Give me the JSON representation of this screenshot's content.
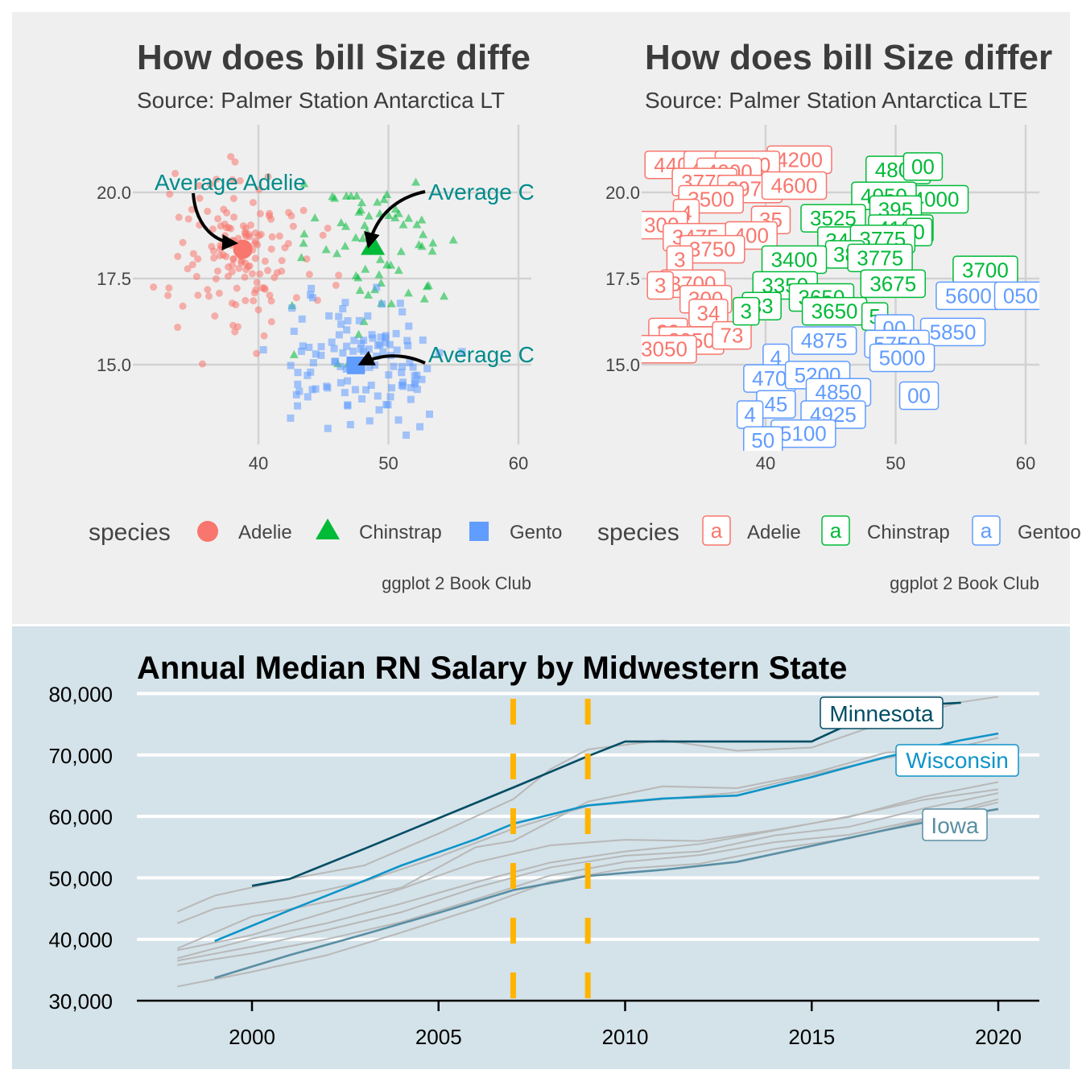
{
  "colors": {
    "panel_bg": "#efefef",
    "bottom_bg": "#d4e2e9",
    "adelie": "#f8766d",
    "chinstrap": "#00ba38",
    "gentoo": "#619cff",
    "annot": "#008b8b",
    "grid": "#d2d2d2",
    "minnesota": "#014d64",
    "wisconsin": "#0f94c8",
    "iowa": "#5a8ea3",
    "other": "#b8b8b8",
    "recession": "#ffb400"
  },
  "chart_data": [
    {
      "type": "scatter",
      "title": "How does bill Size diffe",
      "subtitle": "Source: Palmer Station Antarctica LT",
      "caption": "ggplot 2 Book Club",
      "xlabel": "",
      "ylabel": "",
      "xlim": [
        30.5,
        61
      ],
      "ylim": [
        12.8,
        21.6
      ],
      "x_ticks": [
        40,
        50,
        60
      ],
      "y_ticks": [
        "15.0",
        "17.5",
        "20.0"
      ],
      "y_tick_values": [
        15.0,
        17.5,
        20.0
      ],
      "legend_title": "species",
      "legend": [
        "Adelie",
        "Chinstrap",
        "Gento"
      ],
      "averages": [
        {
          "species": "Adelie",
          "x": 38.8,
          "y": 18.35
        },
        {
          "species": "Chinstrap",
          "x": 48.8,
          "y": 18.42
        },
        {
          "species": "Gentoo",
          "x": 47.5,
          "y": 14.98
        }
      ],
      "annotations": [
        "Average Adelie",
        "Average C",
        "Average C"
      ]
    },
    {
      "type": "scatter",
      "title": "How does bill Size differ",
      "subtitle": "Source: Palmer Station Antarctica LTE",
      "caption": "ggplot 2 Book Club",
      "xlabel": "",
      "ylabel": "",
      "xlim": [
        30.5,
        61
      ],
      "ylim": [
        12.8,
        21.6
      ],
      "x_ticks": [
        40,
        50,
        60
      ],
      "y_ticks": [
        "15.0",
        "17.5",
        "20.0"
      ],
      "y_tick_values": [
        15.0,
        17.5,
        20.0
      ],
      "legend_title": "species",
      "legend_key": "a",
      "legend": [
        "Adelie",
        "Chinstrap",
        "Gentoo"
      ],
      "labels": [
        {
          "s": "a",
          "t": "4200",
          "x": 42.6,
          "y": 20.95
        },
        {
          "s": "a",
          "t": "4400",
          "x": 33.2,
          "y": 20.8
        },
        {
          "s": "a",
          "t": "4100",
          "x": 36.2,
          "y": 20.8
        },
        {
          "s": "a",
          "t": "4400",
          "x": 38.6,
          "y": 20.8
        },
        {
          "s": "a",
          "t": "4000",
          "x": 37.2,
          "y": 20.6
        },
        {
          "s": "a",
          "t": "3775",
          "x": 35.3,
          "y": 20.3
        },
        {
          "s": "a",
          "t": "3975",
          "x": 38.8,
          "y": 20.1
        },
        {
          "s": "a",
          "t": "4600",
          "x": 42.2,
          "y": 20.2
        },
        {
          "s": "a",
          "t": "3500",
          "x": 35.8,
          "y": 19.8
        },
        {
          "s": "a",
          "t": "4",
          "x": 33.9,
          "y": 19.4
        },
        {
          "s": "a",
          "t": "35",
          "x": 40.4,
          "y": 19.2
        },
        {
          "s": "a",
          "t": "300",
          "x": 32.0,
          "y": 19.05
        },
        {
          "s": "a",
          "t": "3475",
          "x": 34.6,
          "y": 18.7
        },
        {
          "s": "a",
          "t": "400",
          "x": 38.9,
          "y": 18.75
        },
        {
          "s": "a",
          "t": "3750",
          "x": 35.9,
          "y": 18.35
        },
        {
          "s": "a",
          "t": "3",
          "x": 33.4,
          "y": 18.05
        },
        {
          "s": "a",
          "t": "3700",
          "x": 34.4,
          "y": 17.35
        },
        {
          "s": "a",
          "t": "3",
          "x": 31.9,
          "y": 17.3
        },
        {
          "s": "a",
          "t": "300",
          "x": 35.4,
          "y": 16.9
        },
        {
          "s": "a",
          "t": "34",
          "x": 35.6,
          "y": 16.5
        },
        {
          "s": "a",
          "t": "29",
          "x": 32.5,
          "y": 15.95
        },
        {
          "s": "a",
          "t": "3050",
          "x": 34.3,
          "y": 15.7
        },
        {
          "s": "a",
          "t": "73",
          "x": 37.4,
          "y": 15.85
        },
        {
          "s": "a",
          "t": "3050",
          "x": 32.2,
          "y": 15.45
        },
        {
          "s": "c",
          "t": "4800",
          "x": 50.2,
          "y": 20.65
        },
        {
          "s": "c",
          "t": "00",
          "x": 52.1,
          "y": 20.75
        },
        {
          "s": "c",
          "t": "4000",
          "x": 53.1,
          "y": 19.8
        },
        {
          "s": "c",
          "t": "4050",
          "x": 49.1,
          "y": 19.9
        },
        {
          "s": "c",
          "t": "395",
          "x": 50.0,
          "y": 19.5
        },
        {
          "s": "c",
          "t": "3525",
          "x": 45.2,
          "y": 19.25
        },
        {
          "s": "c",
          "t": "4100",
          "x": 50.4,
          "y": 18.95
        },
        {
          "s": "c",
          "t": "0",
          "x": 51.8,
          "y": 18.85
        },
        {
          "s": "c",
          "t": "34",
          "x": 45.5,
          "y": 18.6
        },
        {
          "s": "c",
          "t": "3775",
          "x": 49.0,
          "y": 18.65
        },
        {
          "s": "c",
          "t": "38",
          "x": 46.1,
          "y": 18.2
        },
        {
          "s": "c",
          "t": "3400",
          "x": 42.2,
          "y": 18.05
        },
        {
          "s": "c",
          "t": "3775",
          "x": 48.8,
          "y": 18.1
        },
        {
          "s": "c",
          "t": "3700",
          "x": 56.9,
          "y": 17.75
        },
        {
          "s": "c",
          "t": "3350",
          "x": 41.5,
          "y": 17.3
        },
        {
          "s": "c",
          "t": "3675",
          "x": 49.8,
          "y": 17.35
        },
        {
          "s": "c",
          "t": "3650",
          "x": 44.3,
          "y": 16.95
        },
        {
          "s": "c",
          "t": "33",
          "x": 39.7,
          "y": 16.7
        },
        {
          "s": "c",
          "t": "3",
          "x": 38.5,
          "y": 16.55
        },
        {
          "s": "c",
          "t": "3650",
          "x": 45.3,
          "y": 16.55
        },
        {
          "s": "c",
          "t": "5",
          "x": 48.4,
          "y": 16.4
        },
        {
          "s": "g",
          "t": "5600",
          "x": 55.6,
          "y": 17.0
        },
        {
          "s": "g",
          "t": "050",
          "x": 59.6,
          "y": 17.0
        },
        {
          "s": "g",
          "t": "5850",
          "x": 54.4,
          "y": 15.95
        },
        {
          "s": "g",
          "t": "00",
          "x": 49.9,
          "y": 16.05
        },
        {
          "s": "g",
          "t": "4875",
          "x": 44.5,
          "y": 15.7
        },
        {
          "s": "g",
          "t": "5750",
          "x": 50.1,
          "y": 15.6
        },
        {
          "s": "g",
          "t": "5000",
          "x": 50.5,
          "y": 15.2
        },
        {
          "s": "g",
          "t": "4",
          "x": 40.8,
          "y": 15.2
        },
        {
          "s": "g",
          "t": "470",
          "x": 40.3,
          "y": 14.6
        },
        {
          "s": "g",
          "t": "5200",
          "x": 44.0,
          "y": 14.7
        },
        {
          "s": "g",
          "t": "4850",
          "x": 45.6,
          "y": 14.2
        },
        {
          "s": "g",
          "t": "00",
          "x": 51.8,
          "y": 14.1
        },
        {
          "s": "g",
          "t": "45",
          "x": 40.8,
          "y": 13.85
        },
        {
          "s": "g",
          "t": "4925",
          "x": 45.2,
          "y": 13.55
        },
        {
          "s": "g",
          "t": "4",
          "x": 38.8,
          "y": 13.55
        },
        {
          "s": "g",
          "t": "5100",
          "x": 42.9,
          "y": 13.0
        },
        {
          "s": "g",
          "t": "50",
          "x": 39.8,
          "y": 12.8
        }
      ]
    },
    {
      "type": "line",
      "title": "Annual Median RN Salary by Midwestern State",
      "xlim": [
        1997,
        2021.1
      ],
      "ylim": [
        30000,
        80000
      ],
      "x_ticks": [
        2000,
        2005,
        2010,
        2015,
        2020
      ],
      "y_ticks": [
        "30,000",
        "40,000",
        "50,000",
        "60,000",
        "70,000",
        "80,000"
      ],
      "y_tick_values": [
        30000,
        40000,
        50000,
        60000,
        70000,
        80000
      ],
      "recession_years": [
        2007,
        2009
      ],
      "highlight_labels": [
        "Minnesota",
        "Wisconsin",
        "Iowa"
      ],
      "series": [
        {
          "name": "Minnesota",
          "highlight": "minnesota",
          "x": [
            2000,
            2001,
            2003,
            2005,
            2007,
            2009,
            2010,
            2011,
            2012,
            2013,
            2014,
            2015,
            2016,
            2017,
            2018,
            2019
          ],
          "values": [
            48700,
            49800,
            54700,
            59700,
            64700,
            69800,
            72200,
            72200,
            72200,
            72200,
            72200,
            72200,
            75000,
            77300,
            78200,
            78500
          ]
        },
        {
          "name": "Wisconsin",
          "highlight": "wisconsin",
          "x": [
            1999,
            2001,
            2003,
            2004,
            2006,
            2007,
            2009,
            2011,
            2013,
            2015,
            2017,
            2019,
            2020
          ],
          "values": [
            39700,
            44700,
            49500,
            52000,
            56300,
            58800,
            61800,
            62900,
            63400,
            66400,
            69700,
            72400,
            73500
          ]
        },
        {
          "name": "Iowa",
          "highlight": "iowa",
          "x": [
            1999,
            2001,
            2003,
            2005,
            2007,
            2009,
            2011,
            2013,
            2015,
            2017,
            2019,
            2020
          ],
          "values": [
            33700,
            37400,
            40800,
            44300,
            48000,
            50300,
            51300,
            52600,
            55200,
            57800,
            60200,
            61200
          ]
        },
        {
          "name": "other-1",
          "x": [
            1998,
            1999,
            2001,
            2003,
            2005,
            2007,
            2008,
            2009,
            2011,
            2013,
            2015,
            2017,
            2019,
            2020
          ],
          "values": [
            44500,
            47100,
            49800,
            52000,
            57200,
            62800,
            67700,
            70900,
            72400,
            70700,
            71200,
            75400,
            78600,
            79500
          ]
        },
        {
          "name": "other-2",
          "x": [
            1998,
            1999,
            2001,
            2003,
            2005,
            2007,
            2009,
            2011,
            2013,
            2015,
            2017,
            2019,
            2020
          ],
          "values": [
            42600,
            45000,
            46700,
            49400,
            53400,
            58000,
            61700,
            62800,
            63900,
            66800,
            69500,
            71400,
            72800
          ]
        },
        {
          "name": "other-3",
          "x": [
            1998,
            2000,
            2002,
            2004,
            2006,
            2007,
            2009,
            2011,
            2013,
            2015,
            2017,
            2019,
            2020
          ],
          "values": [
            38500,
            43700,
            46100,
            48400,
            55000,
            56000,
            62400,
            64900,
            64600,
            67000,
            70400,
            71000,
            71500
          ]
        },
        {
          "name": "other-4",
          "x": [
            1998,
            2000,
            2002,
            2004,
            2006,
            2008,
            2010,
            2012,
            2014,
            2016,
            2018,
            2020
          ],
          "values": [
            38200,
            40700,
            44400,
            48200,
            52500,
            55300,
            56200,
            56000,
            57800,
            59900,
            63200,
            65600
          ]
        },
        {
          "name": "other-5",
          "x": [
            1998,
            2000,
            2002,
            2004,
            2006,
            2008,
            2010,
            2012,
            2014,
            2016,
            2018,
            2020
          ],
          "values": [
            36900,
            40100,
            42600,
            45800,
            49300,
            52500,
            54300,
            55500,
            57700,
            60000,
            62700,
            64400
          ]
        },
        {
          "name": "other-6",
          "x": [
            1998,
            2000,
            2002,
            2004,
            2006,
            2008,
            2010,
            2012,
            2014,
            2016,
            2018,
            2020
          ],
          "values": [
            36500,
            38800,
            41500,
            44400,
            48400,
            51700,
            53600,
            54300,
            56900,
            58300,
            61300,
            63800
          ]
        },
        {
          "name": "other-7",
          "x": [
            1998,
            2000,
            2002,
            2004,
            2006,
            2008,
            2010,
            2012,
            2014,
            2016,
            2018,
            2020
          ],
          "values": [
            35800,
            37700,
            40000,
            42800,
            46500,
            50400,
            52600,
            53700,
            55800,
            57000,
            59600,
            62800
          ]
        },
        {
          "name": "other-8",
          "x": [
            1998,
            2000,
            2002,
            2004,
            2006,
            2008,
            2010,
            2012,
            2014,
            2016,
            2018,
            2020
          ],
          "values": [
            32300,
            34700,
            37400,
            41100,
            45000,
            49400,
            51500,
            52300,
            54700,
            56400,
            59400,
            62300
          ]
        }
      ]
    }
  ]
}
